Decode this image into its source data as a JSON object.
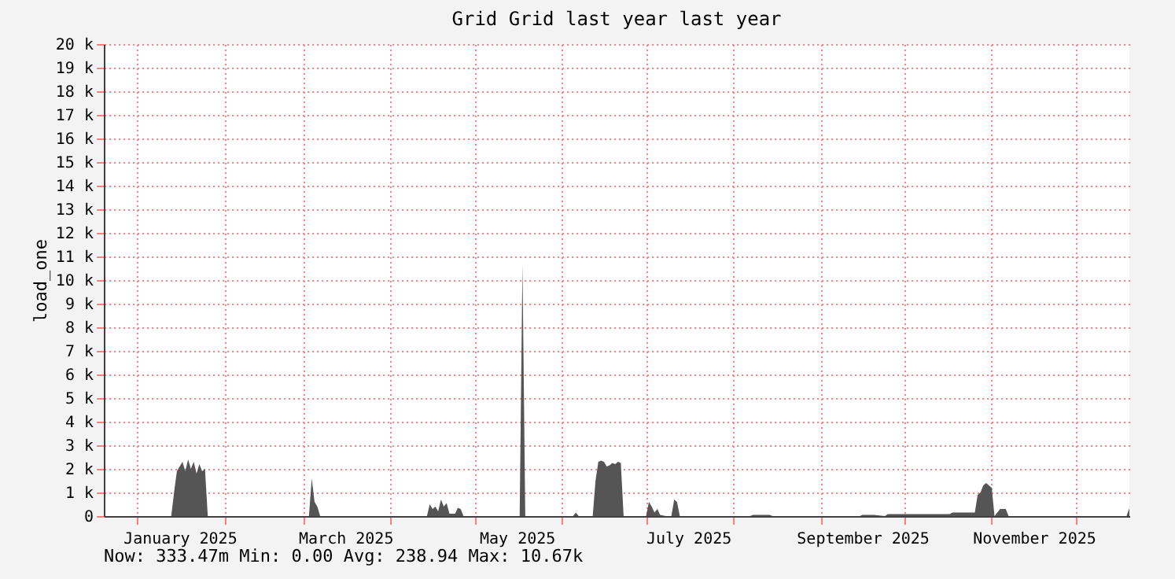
{
  "chart_data": {
    "type": "area",
    "title": "Grid Grid last year last year",
    "ylabel": "load_one",
    "x": [
      "2024-12-21",
      "2025-01-13",
      "2025-01-14",
      "2025-01-15",
      "2025-01-16",
      "2025-01-17",
      "2025-01-18",
      "2025-01-19",
      "2025-01-20",
      "2025-01-21",
      "2025-01-22",
      "2025-01-23",
      "2025-01-24",
      "2025-01-25",
      "2025-01-26",
      "2025-03-03",
      "2025-03-04",
      "2025-03-05",
      "2025-03-06",
      "2025-03-07",
      "2025-04-14",
      "2025-04-15",
      "2025-04-16",
      "2025-04-17",
      "2025-04-18",
      "2025-04-19",
      "2025-04-20",
      "2025-04-21",
      "2025-04-22",
      "2025-04-24",
      "2025-04-25",
      "2025-04-26",
      "2025-04-27",
      "2025-05-17",
      "2025-05-18",
      "2025-05-19",
      "2025-06-05",
      "2025-06-06",
      "2025-06-07",
      "2025-06-12",
      "2025-06-13",
      "2025-06-14",
      "2025-06-15",
      "2025-06-16",
      "2025-06-17",
      "2025-06-18",
      "2025-06-19",
      "2025-06-20",
      "2025-06-21",
      "2025-06-22",
      "2025-06-23",
      "2025-07-01",
      "2025-07-02",
      "2025-07-03",
      "2025-07-04",
      "2025-07-05",
      "2025-07-06",
      "2025-07-08",
      "2025-07-10",
      "2025-07-11",
      "2025-07-12",
      "2025-07-13",
      "2025-08-07",
      "2025-08-08",
      "2025-08-14",
      "2025-08-15",
      "2025-09-15",
      "2025-09-16",
      "2025-09-20",
      "2025-09-24",
      "2025-09-25",
      "2025-10-17",
      "2025-10-18",
      "2025-10-26",
      "2025-10-27",
      "2025-10-28",
      "2025-10-29",
      "2025-10-30",
      "2025-10-31",
      "2025-11-01",
      "2025-11-02",
      "2025-11-04",
      "2025-11-06",
      "2025-11-07",
      "2025-12-19",
      "2025-12-20"
    ],
    "series": [
      {
        "color": "#555555",
        "values": [
          0,
          0,
          1000,
          1900,
          2100,
          2300,
          1900,
          2400,
          2000,
          2300,
          1800,
          2200,
          1900,
          2000,
          0,
          0,
          1600,
          600,
          400,
          0,
          0,
          500,
          300,
          400,
          200,
          700,
          400,
          550,
          100,
          100,
          350,
          300,
          0,
          0,
          10670,
          0,
          0,
          150,
          0,
          0,
          1500,
          2300,
          2350,
          2300,
          2100,
          2150,
          2250,
          2200,
          2300,
          2250,
          0,
          0,
          600,
          400,
          150,
          300,
          50,
          0,
          0,
          700,
          600,
          0,
          0,
          50,
          50,
          0,
          0,
          50,
          50,
          0,
          80,
          80,
          150,
          150,
          900,
          1000,
          1300,
          1400,
          1300,
          1200,
          0,
          300,
          300,
          0,
          0,
          330
        ]
      }
    ],
    "ylim": [
      0,
      20000
    ],
    "yticks": [
      0,
      {
        "value": 1000,
        "label": "1 k"
      },
      {
        "value": 2000,
        "label": "2 k"
      },
      {
        "value": 3000,
        "label": "3 k"
      },
      {
        "value": 4000,
        "label": "4 k"
      },
      {
        "value": 5000,
        "label": "5 k"
      },
      {
        "value": 6000,
        "label": "6 k"
      },
      {
        "value": 7000,
        "label": "7 k"
      },
      {
        "value": 8000,
        "label": "8 k"
      },
      {
        "value": 9000,
        "label": "9 k"
      },
      {
        "value": 10000,
        "label": "10 k"
      },
      {
        "value": 11000,
        "label": "11 k"
      },
      {
        "value": 12000,
        "label": "12 k"
      },
      {
        "value": 13000,
        "label": "13 k"
      },
      {
        "value": 14000,
        "label": "14 k"
      },
      {
        "value": 15000,
        "label": "15 k"
      },
      {
        "value": 16000,
        "label": "16 k"
      },
      {
        "value": 17000,
        "label": "17 k"
      },
      {
        "value": 18000,
        "label": "18 k"
      },
      {
        "value": 19000,
        "label": "19 k"
      },
      {
        "value": 20000,
        "label": "20 k"
      }
    ],
    "xlim": [
      "2024-12-20",
      "2025-12-20"
    ],
    "xticks": [
      {
        "value": "2025-01-01",
        "label": null
      },
      {
        "value": "2025-01-16",
        "label": "January 2025"
      },
      {
        "value": "2025-02-01",
        "label": null
      },
      {
        "value": "2025-03-01",
        "label": null
      },
      {
        "value": "2025-03-16",
        "label": "March 2025"
      },
      {
        "value": "2025-04-01",
        "label": null
      },
      {
        "value": "2025-05-01",
        "label": null
      },
      {
        "value": "2025-05-16",
        "label": "May 2025"
      },
      {
        "value": "2025-06-01",
        "label": null
      },
      {
        "value": "2025-07-01",
        "label": null
      },
      {
        "value": "2025-07-16",
        "label": "July 2025"
      },
      {
        "value": "2025-08-01",
        "label": null
      },
      {
        "value": "2025-09-01",
        "label": null
      },
      {
        "value": "2025-09-16",
        "label": "September 2025"
      },
      {
        "value": "2025-10-01",
        "label": null
      },
      {
        "value": "2025-11-01",
        "label": null
      },
      {
        "value": "2025-11-16",
        "label": "November 2025"
      },
      {
        "value": "2025-12-01",
        "label": null
      }
    ],
    "grid": true,
    "annotations": [
      "Now: 333.47m   Min:   0.00   Avg: 238.94   Max:  10.67k"
    ]
  }
}
